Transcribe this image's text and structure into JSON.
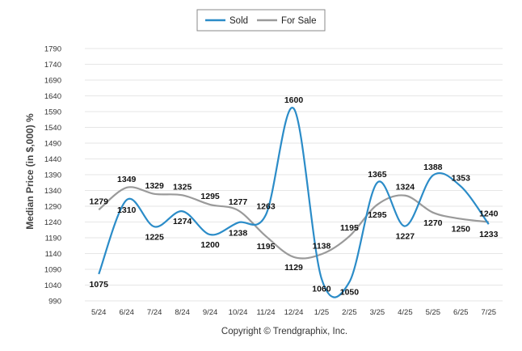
{
  "chart_data": {
    "type": "line",
    "title": "",
    "xlabel": "",
    "ylabel": "Median Price (in $,000) %",
    "categories": [
      "5/24",
      "6/24",
      "7/24",
      "8/24",
      "9/24",
      "10/24",
      "11/24",
      "12/24",
      "1/25",
      "2/25",
      "3/25",
      "4/25",
      "5/25",
      "6/25",
      "7/25"
    ],
    "yticks": [
      990,
      1040,
      1090,
      1140,
      1190,
      1240,
      1290,
      1340,
      1390,
      1440,
      1490,
      1540,
      1590,
      1640,
      1690,
      1740,
      1790
    ],
    "ylim": [
      990,
      1790
    ],
    "grid": true,
    "legend_position": "top-center",
    "series": [
      {
        "name": "Sold",
        "color": "#2b8cc8",
        "values": [
          1075,
          1310,
          1225,
          1274,
          1200,
          1238,
          1263,
          1600,
          1060,
          1050,
          1365,
          1227,
          1388,
          1353,
          1233
        ]
      },
      {
        "name": "For Sale",
        "color": "#9a9a9a",
        "values": [
          1279,
          1349,
          1329,
          1325,
          1295,
          1277,
          1195,
          1129,
          1138,
          1195,
          1295,
          1324,
          1270,
          1250,
          1240
        ]
      }
    ]
  },
  "footer": {
    "copyright": "Copyright © Trendgraphix, Inc."
  }
}
